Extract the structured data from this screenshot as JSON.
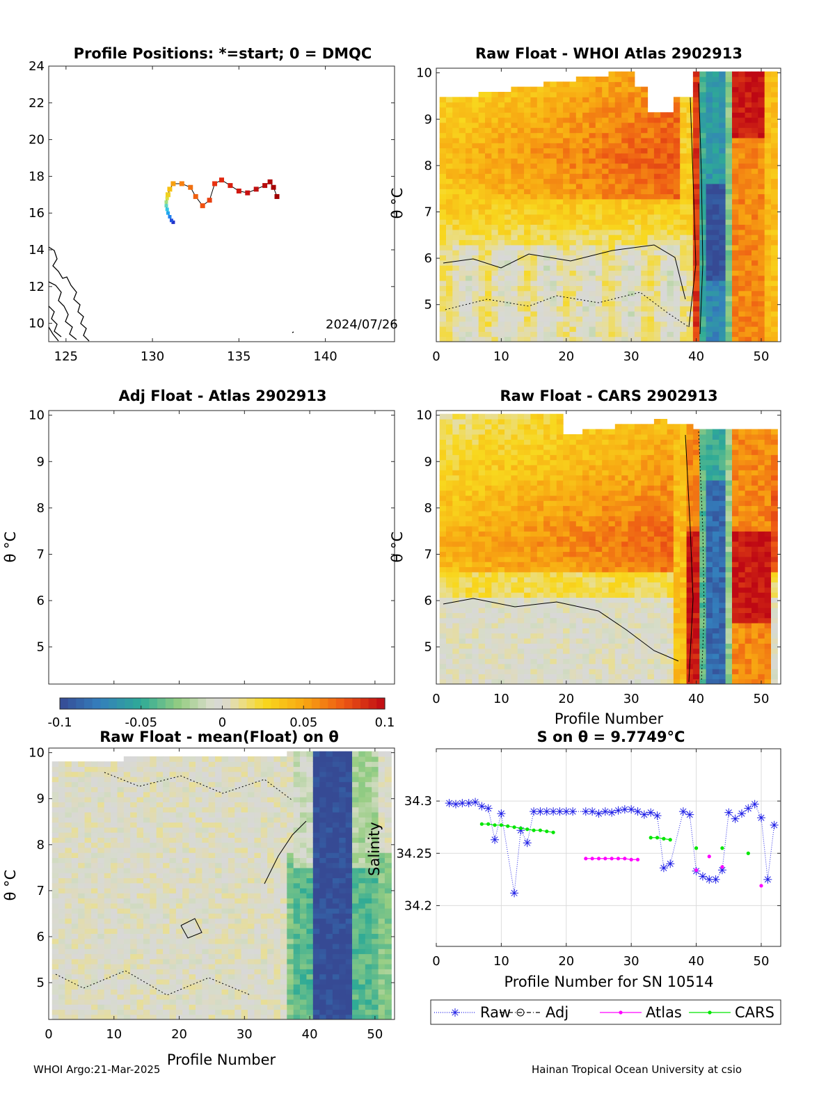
{
  "figure": {
    "footer_left": "WHOI Argo:21-Mar-2025",
    "footer_right": "Hainan Tropical Ocean University at csio"
  },
  "chart_data": [
    {
      "id": "map",
      "type": "scatter",
      "title": "Profile Positions: *=start; 0 = DMQC",
      "xlim": [
        124,
        144
      ],
      "ylim": [
        9,
        24
      ],
      "xticks": [
        125,
        130,
        135,
        140
      ],
      "yticks": [
        10,
        12,
        14,
        16,
        18,
        20,
        22,
        24
      ],
      "annotation": "2024/07/26",
      "track": [
        [
          131.2,
          15.5
        ],
        [
          131.1,
          15.6
        ],
        [
          131.0,
          15.8
        ],
        [
          130.9,
          16.0
        ],
        [
          130.85,
          16.2
        ],
        [
          130.8,
          16.4
        ],
        [
          130.8,
          16.6
        ],
        [
          130.85,
          16.8
        ],
        [
          130.9,
          17.0
        ],
        [
          131.0,
          17.3
        ],
        [
          131.2,
          17.6
        ],
        [
          131.7,
          17.6
        ],
        [
          132.2,
          17.4
        ],
        [
          132.5,
          16.9
        ],
        [
          132.9,
          16.4
        ],
        [
          133.3,
          16.7
        ],
        [
          133.6,
          17.6
        ],
        [
          134.0,
          17.8
        ],
        [
          134.5,
          17.5
        ],
        [
          135.0,
          17.2
        ],
        [
          135.5,
          17.1
        ],
        [
          136.0,
          17.3
        ],
        [
          136.5,
          17.5
        ],
        [
          136.8,
          17.7
        ],
        [
          137.0,
          17.4
        ],
        [
          137.2,
          16.9
        ]
      ]
    },
    {
      "id": "whoi",
      "type": "heatmap",
      "title": "Raw Float - WHOI Atlas  2902913",
      "ylabel": "θ °C",
      "xlim": [
        0,
        53
      ],
      "ylim": [
        4.2,
        10.1
      ],
      "xticks": [
        0,
        10,
        20,
        30,
        40,
        50
      ],
      "yticks": [
        5,
        6,
        7,
        8,
        9,
        10
      ]
    },
    {
      "id": "adj",
      "type": "heatmap",
      "title": "Adj Float - Atlas  2902913",
      "ylabel": "θ °C",
      "xlim": [
        0,
        53
      ],
      "ylim": [
        4.2,
        10.1
      ],
      "yticks": [
        5,
        6,
        7,
        8,
        9,
        10
      ]
    },
    {
      "id": "cars",
      "type": "heatmap",
      "title": "Raw Float - CARS  2902913",
      "xlabel": "Profile Number",
      "ylabel": "θ °C",
      "xlim": [
        0,
        53
      ],
      "ylim": [
        4.2,
        10.1
      ],
      "xticks": [
        0,
        10,
        20,
        30,
        40,
        50
      ],
      "yticks": [
        5,
        6,
        7,
        8,
        9,
        10
      ]
    },
    {
      "id": "colorbar",
      "type": "heatmap",
      "range": [
        -0.1,
        0.1
      ],
      "ticks": [
        "-0.1",
        "-0.05",
        "0",
        "0.05",
        "0.1"
      ]
    },
    {
      "id": "mean",
      "type": "heatmap",
      "title": "Raw Float - mean(Float) on θ",
      "xlabel": "Profile Number",
      "ylabel": "θ °C",
      "xlim": [
        0,
        53
      ],
      "ylim": [
        4.2,
        10.1
      ],
      "xticks": [
        0,
        10,
        20,
        30,
        40,
        50
      ],
      "yticks": [
        5,
        6,
        7,
        8,
        9,
        10
      ]
    },
    {
      "id": "sal",
      "type": "line",
      "title": "S on θ = 9.7749°C",
      "xlabel": "Profile Number for SN 10514",
      "ylabel": "Salinity",
      "xlim": [
        0,
        53
      ],
      "ylim": [
        34.161,
        34.35
      ],
      "xticks": [
        0,
        10,
        20,
        30,
        40,
        50
      ],
      "yticks": [
        34.2,
        34.25,
        34.3
      ],
      "ytick_labels": [
        "34.2",
        "34.25",
        "34.3"
      ],
      "legend": [
        "Raw",
        "Adj",
        "Atlas",
        "CARS"
      ],
      "legend_position": "bottom-outside",
      "series": [
        {
          "name": "Raw",
          "color": "#1f1fe6",
          "x": [
            2,
            3,
            4,
            5,
            6,
            7,
            8,
            9,
            10,
            12,
            13,
            14,
            15,
            16,
            17,
            18,
            19,
            20,
            21,
            23,
            24,
            25,
            26,
            27,
            28,
            29,
            30,
            31,
            32,
            33,
            34,
            35,
            36,
            38,
            39,
            40,
            41,
            42,
            43,
            44,
            45,
            46,
            47,
            48,
            49,
            50,
            51,
            52
          ],
          "y": [
            34.298,
            34.297,
            34.298,
            34.298,
            34.299,
            34.295,
            34.293,
            34.263,
            34.288,
            34.212,
            34.272,
            34.26,
            34.29,
            34.29,
            34.29,
            34.29,
            34.29,
            34.29,
            34.29,
            34.29,
            34.29,
            34.288,
            34.29,
            34.289,
            34.291,
            34.292,
            34.292,
            34.29,
            34.287,
            34.289,
            34.286,
            34.236,
            34.24,
            34.29,
            34.287,
            34.233,
            34.228,
            34.225,
            34.225,
            34.234,
            34.289,
            34.283,
            34.288,
            34.293,
            34.297,
            34.284,
            34.225,
            34.277
          ]
        },
        {
          "name": "Adj",
          "color": "#000000",
          "x": [],
          "y": []
        },
        {
          "name": "Atlas",
          "color": "#ff00ff",
          "x": [
            23,
            24,
            25,
            26,
            27,
            28,
            29,
            30,
            31,
            40,
            42,
            44,
            50
          ],
          "y": [
            34.245,
            34.245,
            34.245,
            34.245,
            34.245,
            34.245,
            34.245,
            34.244,
            34.244,
            34.234,
            34.247,
            34.237,
            34.219
          ]
        },
        {
          "name": "CARS",
          "color": "#00e600",
          "x": [
            7,
            8,
            9,
            10,
            11,
            12,
            13,
            14,
            15,
            16,
            17,
            18,
            33,
            34,
            35,
            36,
            40,
            44,
            48
          ],
          "y": [
            34.278,
            34.278,
            34.277,
            34.277,
            34.276,
            34.275,
            34.274,
            34.273,
            34.272,
            34.272,
            34.271,
            34.27,
            34.265,
            34.265,
            34.264,
            34.263,
            34.255,
            34.255,
            34.25
          ]
        }
      ]
    }
  ]
}
